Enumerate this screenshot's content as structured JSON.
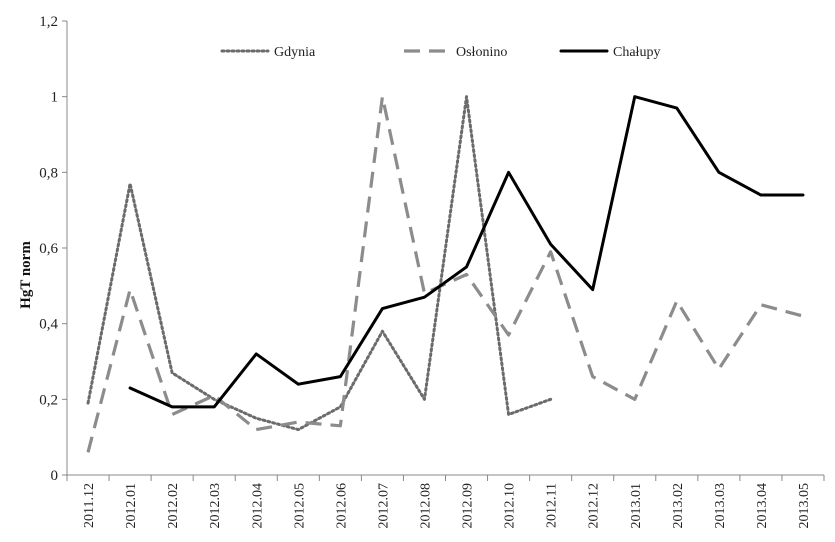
{
  "chart_data": {
    "type": "line",
    "title": "",
    "xlabel": "",
    "ylabel": "HgT norm",
    "ylim": [
      0,
      1.2
    ],
    "yticks": [
      "0",
      "0,2",
      "0,4",
      "0,6",
      "0,8",
      "1",
      "1,2"
    ],
    "ytick_values": [
      0,
      0.2,
      0.4,
      0.6,
      0.8,
      1.0,
      1.2
    ],
    "grid": false,
    "legend_position": "top-center",
    "categories": [
      "2011.12",
      "2012.01",
      "2012.02",
      "2012.03",
      "2012.04",
      "2012.05",
      "2012.06",
      "2012.07",
      "2012.08",
      "2012.09",
      "2012.10",
      "2012.11",
      "2012.12",
      "2013.01",
      "2013.02",
      "2013.03",
      "2013.04",
      "2013.05"
    ],
    "series": [
      {
        "name": "Gdynia",
        "style": "dotted",
        "color": "#6b6b6b",
        "values": [
          0.19,
          0.77,
          0.27,
          0.2,
          0.15,
          0.12,
          0.18,
          0.38,
          0.2,
          1.0,
          0.16,
          0.2,
          null,
          null,
          null,
          null,
          null,
          null
        ]
      },
      {
        "name": "Osłonino",
        "style": "dashed",
        "color": "#8c8c8c",
        "values": [
          0.06,
          0.49,
          0.16,
          0.21,
          0.12,
          0.14,
          0.13,
          1.0,
          0.48,
          0.53,
          0.37,
          0.59,
          0.26,
          0.2,
          0.46,
          0.28,
          0.45,
          0.42
        ]
      },
      {
        "name": "Chałupy",
        "style": "solid",
        "color": "#000000",
        "values": [
          null,
          0.23,
          0.18,
          0.18,
          0.32,
          0.24,
          0.26,
          0.44,
          0.47,
          0.55,
          0.8,
          0.61,
          0.49,
          1.0,
          0.97,
          0.8,
          0.74,
          0.74
        ]
      }
    ]
  }
}
